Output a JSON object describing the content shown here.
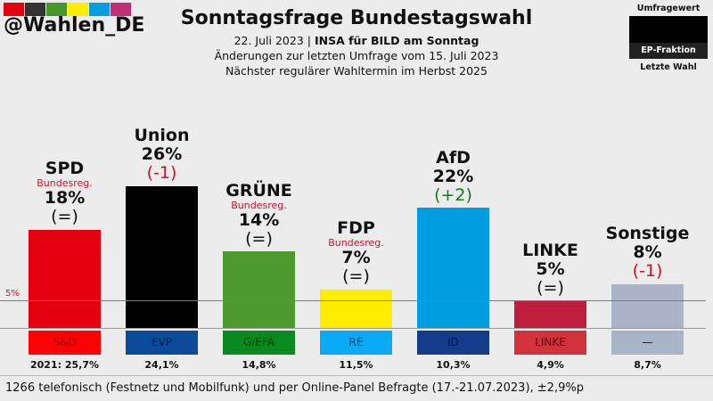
{
  "header": {
    "handle": "@Wahlen_DE",
    "logo_colors": [
      "#e3000f",
      "#333333",
      "#46962b",
      "#ffed00",
      "#009ee0",
      "#be3075"
    ],
    "title": "Sonntagsfrage Bundestagswahl",
    "date": "22. Juli 2023",
    "separator": "|",
    "source": "INSA für BILD am Sonntag",
    "line2": "Änderungen zur letzten Umfrage vom 15. Juli 2023",
    "line3": "Nächster regulärer Wahltermin im Herbst 2025"
  },
  "legend": {
    "top": "Umfragewert",
    "middle": "EP-Fraktion",
    "bottom": "Letzte Wahl"
  },
  "footer": "1266 telefonisch (Festnetz und Mobilfunk) und per Online-Panel Befragte (17.-21.07.2023), ±2,9%p",
  "chart_data": {
    "type": "bar",
    "threshold": 5,
    "threshold_label": "5%",
    "ylim": [
      0,
      26
    ],
    "parties": [
      {
        "name": "SPD",
        "value": 18,
        "label": "18%",
        "change": "(=)",
        "change_color": "#111111",
        "govt": "Bundesreg.",
        "color": "#e3000f",
        "fraktion": "S&D",
        "fraktion_color": "#ff0000",
        "fraktion_text": "#7a0000",
        "last": "2021: 25,7%"
      },
      {
        "name": "Union",
        "value": 26,
        "label": "26%",
        "change": "(-1)",
        "change_color": "#c8102e",
        "govt": "",
        "color": "#000000",
        "fraktion": "EVP",
        "fraktion_color": "#0a4b9a",
        "fraktion_text": "#0a1f44",
        "last": "24,1%"
      },
      {
        "name": "GRÜNE",
        "value": 14,
        "label": "14%",
        "change": "(=)",
        "change_color": "#111111",
        "govt": "Bundesreg.",
        "color": "#4e9a2f",
        "fraktion": "G/EFA",
        "fraktion_color": "#0a8a1e",
        "fraktion_text": "#053a0c",
        "last": "14,8%"
      },
      {
        "name": "FDP",
        "value": 7,
        "label": "7%",
        "change": "(=)",
        "change_color": "#111111",
        "govt": "Bundesreg.",
        "color": "#ffed00",
        "fraktion": "RE",
        "fraktion_color": "#0aaaf5",
        "fraktion_text": "#04304a",
        "last": "11,5%"
      },
      {
        "name": "AfD",
        "value": 22,
        "label": "22%",
        "change": "(+2)",
        "change_color": "#1a7a1a",
        "govt": "",
        "color": "#009ee0",
        "fraktion": "ID",
        "fraktion_color": "#143c8a",
        "fraktion_text": "#071a3f",
        "last": "10,3%"
      },
      {
        "name": "LINKE",
        "value": 5,
        "label": "5%",
        "change": "(=)",
        "change_color": "#111111",
        "govt": "",
        "color": "#be1e3c",
        "fraktion": "LINKE",
        "fraktion_color": "#d2323c",
        "fraktion_text": "#5a0a0f",
        "last": "4,9%"
      },
      {
        "name": "Sonstige",
        "value": 8,
        "label": "8%",
        "change": "(-1)",
        "change_color": "#c8102e",
        "govt": "",
        "color": "#aab4c8",
        "fraktion": "—",
        "fraktion_color": "#aab4c8",
        "fraktion_text": "#111111",
        "last": "8,7%"
      }
    ]
  }
}
